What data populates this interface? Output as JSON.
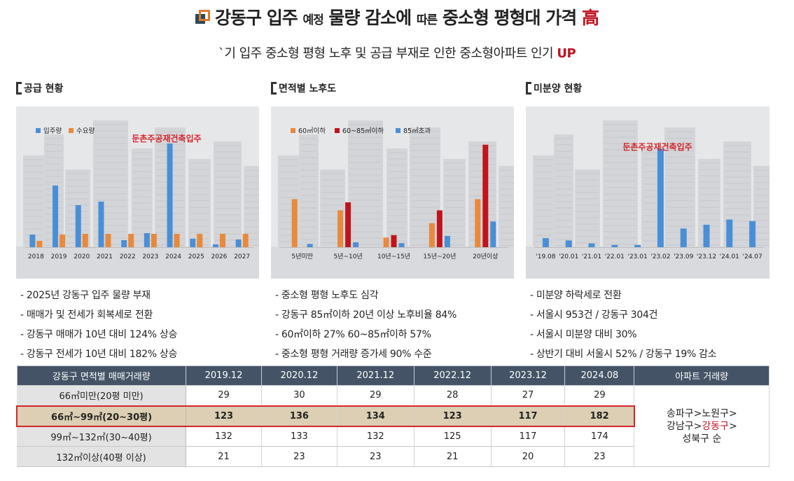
{
  "header": {
    "title_a": "강동구 입주 ",
    "title_small": "예정",
    "title_b": " 물량 감소에 ",
    "title_small2": "따른",
    "title_c": " 중소형 평형대 가격 ",
    "title_red": "高",
    "subtitle": "`기 입주 중소형 평형 노후 및 공급 부재로 인한 중소형아파트 인기 ",
    "subtitle_red": "UP"
  },
  "sections": [
    {
      "title": "공급 현황",
      "bullets": [
        "- 2025년 강동구 입주 물량 부재",
        "- 매매가 및 전세가 회복세로 전환",
        "- 강동구 매매가 10년 대비 124% 상승",
        "- 강동구 전세가 10년 대비 182% 상승"
      ]
    },
    {
      "title": "면적별 노후도",
      "bullets": [
        "- 중소형 평형 노후도 심각",
        "- 강동구 85㎡이하 20년 이상 노후비율 84%",
        "- 60㎡이하 27% 60~85㎡이하 57%",
        "- 중소형 평형 거래량 증가세 90% 수준"
      ]
    },
    {
      "title": "미분양 현황",
      "bullets": [
        "- 미분양 하락세로 전환",
        "- 서울시 953건 / 강동구 304건",
        "- 서울시 미분양 대비 30%",
        "- 상반기 대비 서울시 52% / 강동구 19% 감소"
      ]
    }
  ],
  "colors": {
    "blue": "#4a8fd6",
    "orange": "#e8893c",
    "red": "#c0141c",
    "annotation": "#d4262b"
  },
  "chart_data": [
    {
      "type": "bar",
      "categories": [
        "2018",
        "2019",
        "2020",
        "2021",
        "2022",
        "2023",
        "2024",
        "2025",
        "2026",
        "2027"
      ],
      "series": [
        {
          "name": "입주량",
          "values": [
            18,
            88,
            60,
            65,
            10,
            20,
            148,
            12,
            4,
            11
          ]
        },
        {
          "name": "수요량",
          "values": [
            9,
            18,
            19,
            19,
            19,
            19,
            19,
            19,
            19,
            19
          ]
        }
      ],
      "annotation": "둔촌주공재건축입주",
      "legend": "top-left",
      "ylim": [
        0,
        160
      ]
    },
    {
      "type": "bar",
      "categories": [
        "5년미만",
        "5년~10년",
        "10년~15년",
        "15년~20년",
        "20년이상"
      ],
      "series": [
        {
          "name": "60㎡이하",
          "values": [
            60,
            46,
            12,
            30,
            60
          ]
        },
        {
          "name": "60~85㎡이하",
          "values": [
            0,
            56,
            15,
            46,
            128
          ]
        },
        {
          "name": "85㎡초과",
          "values": [
            4,
            6,
            5,
            14,
            32
          ]
        }
      ],
      "legend": "top-left",
      "ylim": [
        0,
        140
      ]
    },
    {
      "type": "bar",
      "categories": [
        "'19.08",
        "'20.01",
        "'21.01",
        "'22.01",
        "'23.01",
        "'23.02",
        "'23.09",
        "'23.12",
        "'24.01",
        "'24.07"
      ],
      "series": [
        {
          "name": "미분양",
          "values": [
            12,
            9,
            5,
            3,
            3,
            132,
            25,
            30,
            37,
            35
          ]
        }
      ],
      "annotation": "둔촌주공재건축입주",
      "ylim": [
        0,
        150
      ]
    }
  ],
  "table": {
    "headers": [
      "강동구 면적별 매매거래량",
      "2019.12",
      "2020.12",
      "2021.12",
      "2022.12",
      "2023.12",
      "2024.08",
      "아파트 거래량"
    ],
    "rows": [
      {
        "label": "66㎡미만(20평 미만)",
        "values": [
          "29",
          "30",
          "29",
          "28",
          "27",
          "29"
        ]
      },
      {
        "label": "66㎡~99㎡(20~30평)",
        "values": [
          "123",
          "136",
          "134",
          "123",
          "117",
          "182"
        ]
      },
      {
        "label": "99㎡~132㎡(30~40평)",
        "values": [
          "132",
          "133",
          "132",
          "125",
          "117",
          "174"
        ]
      },
      {
        "label": "132㎡이상(40평 이상)",
        "values": [
          "21",
          "23",
          "23",
          "21",
          "20",
          "23"
        ]
      }
    ],
    "note_line1": "송파구>노원구>",
    "note_line2a": "강남구>",
    "note_line2b": "강동구",
    "note_line2c": ">",
    "note_line3": "성북구 순"
  }
}
